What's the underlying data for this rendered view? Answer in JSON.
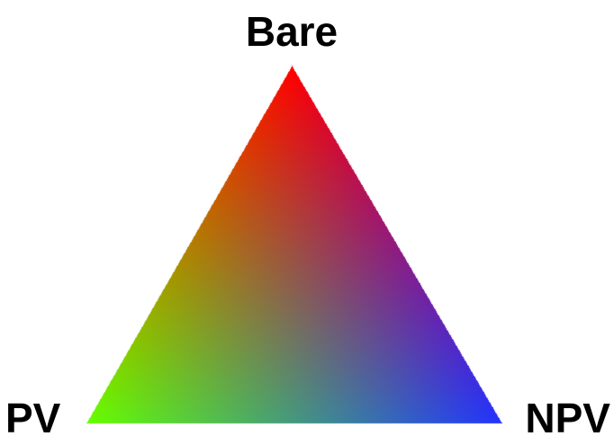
{
  "labels": {
    "top": "Bare",
    "left": "PV",
    "right": "NPV"
  },
  "colors": {
    "top": "#ff0000",
    "left": "#66ff00",
    "right": "#2233ff",
    "text": "#000000",
    "background": "#ffffff"
  }
}
